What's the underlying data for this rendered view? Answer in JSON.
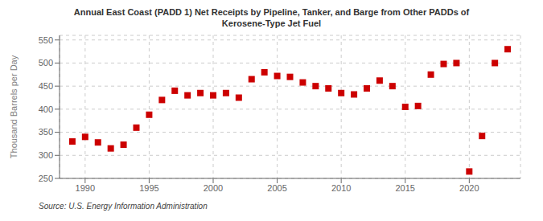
{
  "chart_data": {
    "type": "scatter",
    "title": "Annual East Coast (PADD 1) Net Receipts by Pipeline, Tanker, and Barge from Other PADDs of\nKerosene-Type Jet Fuel",
    "y_label": "Thousand Barrels per Day",
    "annotations": [
      "Source: U.S. Energy Information Administration"
    ],
    "x": [
      1989,
      1990,
      1991,
      1992,
      1993,
      1994,
      1995,
      1996,
      1997,
      1998,
      1999,
      2000,
      2001,
      2002,
      2003,
      2004,
      2005,
      2006,
      2007,
      2008,
      2009,
      2010,
      2011,
      2012,
      2013,
      2014,
      2015,
      2016,
      2017,
      2018,
      2019,
      2020,
      2021,
      2022,
      2023
    ],
    "values": [
      330,
      340,
      328,
      315,
      323,
      360,
      388,
      420,
      440,
      430,
      435,
      430,
      435,
      425,
      465,
      480,
      472,
      470,
      458,
      450,
      445,
      435,
      432,
      445,
      462,
      450,
      405,
      407,
      475,
      498,
      500,
      265,
      342,
      500,
      530
    ],
    "color": "#cc0000",
    "marker": "square",
    "xlim": [
      1988,
      2024
    ],
    "xticks": [
      1990,
      1995,
      2000,
      2005,
      2010,
      2015,
      2020
    ],
    "ylim": [
      250,
      560
    ],
    "yticks": [
      250,
      300,
      350,
      400,
      450,
      500,
      550
    ],
    "grid": true
  }
}
